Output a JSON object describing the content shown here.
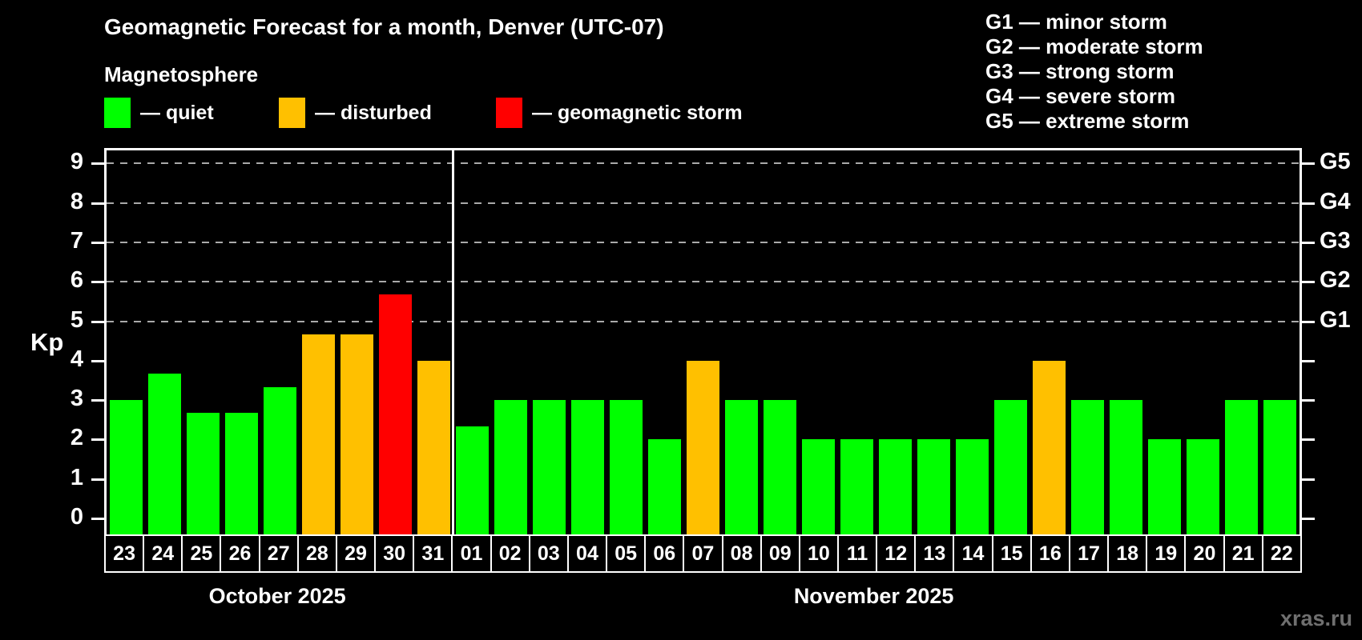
{
  "title": "Geomagnetic Forecast for a month, Denver (UTC-07)",
  "subtitle": "Magnetosphere",
  "legend": {
    "items": [
      {
        "name": "quiet",
        "label": "— quiet",
        "color": "#00ff00"
      },
      {
        "name": "disturbed",
        "label": "— disturbed",
        "color": "#ffc000"
      },
      {
        "name": "storm",
        "label": "— geomagnetic storm",
        "color": "#ff0000"
      }
    ]
  },
  "g_scale_legend": {
    "items": [
      {
        "label": "G1 — minor storm"
      },
      {
        "label": "G2 — moderate storm"
      },
      {
        "label": "G3 — strong storm"
      },
      {
        "label": "G4 — severe storm"
      },
      {
        "label": "G5 — extreme storm"
      }
    ]
  },
  "watermark": "xras.ru",
  "chart_data": {
    "type": "bar",
    "title": "Geomagnetic Forecast for a month, Denver (UTC-07)",
    "ylabel": "Kp",
    "ylim": [
      0,
      9
    ],
    "yticks": [
      0,
      1,
      2,
      3,
      4,
      5,
      6,
      7,
      8,
      9
    ],
    "grid": "dashed horizontal lines at Kp 5-9 only",
    "gridlines_at": [
      5,
      6,
      7,
      8,
      9
    ],
    "right_axis": [
      {
        "kp": 5,
        "label": "G1"
      },
      {
        "kp": 6,
        "label": "G2"
      },
      {
        "kp": 7,
        "label": "G3"
      },
      {
        "kp": 8,
        "label": "G4"
      },
      {
        "kp": 9,
        "label": "G5"
      }
    ],
    "status_colors": {
      "quiet": "#00ff00",
      "disturbed": "#ffc000",
      "storm": "#ff0000"
    },
    "months": [
      {
        "label": "October 2025",
        "days": [
          {
            "day": "23",
            "kp": 3.0,
            "status": "quiet"
          },
          {
            "day": "24",
            "kp": 3.67,
            "status": "quiet"
          },
          {
            "day": "25",
            "kp": 2.67,
            "status": "quiet"
          },
          {
            "day": "26",
            "kp": 2.67,
            "status": "quiet"
          },
          {
            "day": "27",
            "kp": 3.33,
            "status": "quiet"
          },
          {
            "day": "28",
            "kp": 4.67,
            "status": "disturbed"
          },
          {
            "day": "29",
            "kp": 4.67,
            "status": "disturbed"
          },
          {
            "day": "30",
            "kp": 5.67,
            "status": "storm"
          },
          {
            "day": "31",
            "kp": 4.0,
            "status": "disturbed"
          }
        ]
      },
      {
        "label": "November 2025",
        "days": [
          {
            "day": "01",
            "kp": 2.33,
            "status": "quiet"
          },
          {
            "day": "02",
            "kp": 3.0,
            "status": "quiet"
          },
          {
            "day": "03",
            "kp": 3.0,
            "status": "quiet"
          },
          {
            "day": "04",
            "kp": 3.0,
            "status": "quiet"
          },
          {
            "day": "05",
            "kp": 3.0,
            "status": "quiet"
          },
          {
            "day": "06",
            "kp": 2.0,
            "status": "quiet"
          },
          {
            "day": "07",
            "kp": 4.0,
            "status": "disturbed"
          },
          {
            "day": "08",
            "kp": 3.0,
            "status": "quiet"
          },
          {
            "day": "09",
            "kp": 3.0,
            "status": "quiet"
          },
          {
            "day": "10",
            "kp": 2.0,
            "status": "quiet"
          },
          {
            "day": "11",
            "kp": 2.0,
            "status": "quiet"
          },
          {
            "day": "12",
            "kp": 2.0,
            "status": "quiet"
          },
          {
            "day": "13",
            "kp": 2.0,
            "status": "quiet"
          },
          {
            "day": "14",
            "kp": 2.0,
            "status": "quiet"
          },
          {
            "day": "15",
            "kp": 3.0,
            "status": "quiet"
          },
          {
            "day": "16",
            "kp": 4.0,
            "status": "disturbed"
          },
          {
            "day": "17",
            "kp": 3.0,
            "status": "quiet"
          },
          {
            "day": "18",
            "kp": 3.0,
            "status": "quiet"
          },
          {
            "day": "19",
            "kp": 2.0,
            "status": "quiet"
          },
          {
            "day": "20",
            "kp": 2.0,
            "status": "quiet"
          },
          {
            "day": "21",
            "kp": 3.0,
            "status": "quiet"
          },
          {
            "day": "22",
            "kp": 3.0,
            "status": "quiet"
          }
        ]
      }
    ]
  }
}
